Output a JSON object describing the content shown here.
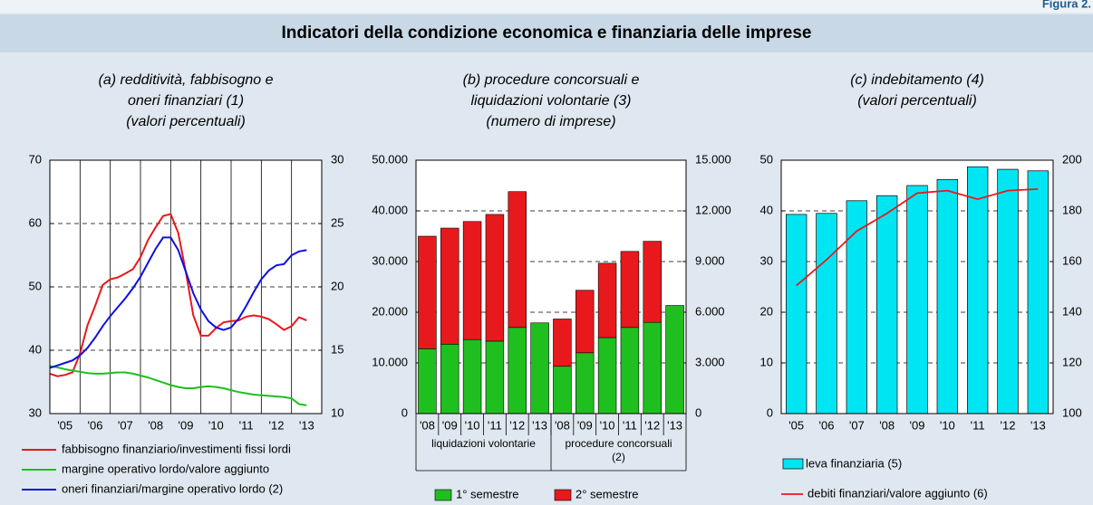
{
  "header": {
    "figure": "Figura 2.",
    "title": "Indicatori della condizione economica e finanziaria delle imprese"
  },
  "chart_data": [
    {
      "type": "line",
      "title": [
        "(a) redditività, fabbisogno e",
        "oneri finanziari (1)",
        "(valori percentuali)"
      ],
      "x": [
        2005,
        2005.25,
        2005.5,
        2005.75,
        2006,
        2006.25,
        2006.5,
        2006.75,
        2007,
        2007.25,
        2007.5,
        2007.75,
        2008,
        2008.25,
        2008.5,
        2008.75,
        2009,
        2009.25,
        2009.5,
        2009.75,
        2010,
        2010.25,
        2010.5,
        2010.75,
        2011,
        2011.25,
        2011.5,
        2011.75,
        2012,
        2012.25,
        2012.5,
        2012.75,
        2013,
        2013.25,
        2013.5
      ],
      "xlim": [
        2005,
        2014
      ],
      "xticks": [
        {
          "value": 2005.5,
          "label": "'05"
        },
        {
          "value": 2006.5,
          "label": "'06"
        },
        {
          "value": 2007.5,
          "label": "'07"
        },
        {
          "value": 2008.5,
          "label": "'08"
        },
        {
          "value": 2009.5,
          "label": "'09"
        },
        {
          "value": 2010.5,
          "label": "'10"
        },
        {
          "value": 2011.5,
          "label": "'11"
        },
        {
          "value": 2012.5,
          "label": "'12"
        },
        {
          "value": 2013.5,
          "label": "'13"
        }
      ],
      "xgrid": [
        2006,
        2007,
        2008,
        2009,
        2010,
        2011,
        2012,
        2013
      ],
      "ylim": [
        30,
        70
      ],
      "yticks": [
        30,
        40,
        50,
        60,
        70
      ],
      "y2lim": [
        10,
        30
      ],
      "y2ticks": [
        10,
        15,
        20,
        25,
        30
      ],
      "grid": true,
      "series": [
        {
          "name": "fabbisogno finanziario/investimenti fissi lordi",
          "color": "#e8191c",
          "axis": "y",
          "values": [
            36.3,
            35.9,
            36.1,
            36.5,
            39.5,
            44,
            47,
            50.3,
            51.2,
            51.5,
            52.1,
            52.8,
            54.7,
            57.4,
            59.4,
            61.2,
            61.5,
            58.5,
            52.4,
            45.5,
            42.3,
            42.3,
            43.5,
            44.4,
            44.6,
            44.7,
            45.3,
            45.5,
            45.3,
            44.9,
            44.1,
            43.2,
            43.8,
            45.2,
            44.7
          ]
        },
        {
          "name": "margine operativo lordo/valore aggiunto",
          "color": "#1fbf1f",
          "axis": "y",
          "values": [
            37.5,
            37.3,
            37.0,
            36.8,
            36.6,
            36.4,
            36.3,
            36.3,
            36.4,
            36.5,
            36.5,
            36.3,
            36.0,
            35.7,
            35.3,
            34.9,
            34.5,
            34.2,
            34.0,
            34.0,
            34.2,
            34.3,
            34.2,
            34.0,
            33.7,
            33.4,
            33.2,
            33.0,
            32.9,
            32.8,
            32.7,
            32.6,
            32.4,
            31.5,
            31.3
          ]
        },
        {
          "name": "oneri finanziari/margine operativo lordo (2)",
          "color": "#1010e0",
          "axis": "y2",
          "values": [
            13.6,
            13.8,
            14.0,
            14.2,
            14.6,
            15.2,
            16.0,
            16.9,
            17.7,
            18.4,
            19.1,
            19.9,
            20.8,
            21.9,
            23.0,
            23.9,
            23.9,
            22.9,
            21.2,
            19.5,
            18.2,
            17.3,
            16.8,
            16.6,
            16.8,
            17.5,
            18.5,
            19.6,
            20.6,
            21.3,
            21.7,
            21.8,
            22.5,
            22.8,
            22.9
          ]
        }
      ]
    },
    {
      "type": "stacked_bar",
      "title": [
        "(b) procedure concorsuali e",
        "liquidazioni volontarie (3)",
        "(numero di imprese)"
      ],
      "ylim": [
        0,
        50000
      ],
      "yticks": [
        0,
        {
          "value": 10000,
          "label": "10.000"
        },
        {
          "value": 20000,
          "label": "20.000"
        },
        {
          "value": 30000,
          "label": "30.000"
        },
        {
          "value": 40000,
          "label": "40.000"
        },
        {
          "value": 50000,
          "label": "50.000"
        }
      ],
      "y2lim": [
        0,
        15000
      ],
      "y2ticks": [
        0,
        {
          "value": 3000,
          "label": "3.000"
        },
        {
          "value": 6000,
          "label": "6.000"
        },
        {
          "value": 9000,
          "label": "9.000"
        },
        {
          "value": 12000,
          "label": "12.000"
        },
        {
          "value": 15000,
          "label": "15.000"
        }
      ],
      "grid": true,
      "series": [
        {
          "name": "1° semestre",
          "color": "#1fbf1f"
        },
        {
          "name": "2° semestre",
          "color": "#e8191c"
        }
      ],
      "groups": [
        {
          "label": "liquidazioni volontarie",
          "axis": "y",
          "categories": [
            "'08",
            "'09",
            "'10",
            "'11",
            "'12",
            "'13"
          ],
          "values": [
            [
              12800,
              13700,
              14600,
              14300,
              17000,
              17900
            ],
            [
              22200,
              22900,
              23300,
              25000,
              26800,
              null
            ]
          ]
        },
        {
          "label": "procedure concorsuali (2)",
          "axis": "y2",
          "categories": [
            "'08",
            "'09",
            "'10",
            "'11",
            "'12",
            "'13"
          ],
          "values": [
            [
              2800,
              3600,
              4500,
              5100,
              5400,
              6400
            ],
            [
              2800,
              3700,
              4400,
              4500,
              4800,
              null
            ]
          ]
        }
      ]
    },
    {
      "type": "bar_line",
      "title": [
        "(c) indebitamento (4)",
        "(valori percentuali)"
      ],
      "categories": [
        "'05",
        "'06",
        "'07",
        "'08",
        "'09",
        "'10",
        "'11",
        "'12",
        "'13"
      ],
      "ylim": [
        0,
        50
      ],
      "yticks": [
        0,
        10,
        20,
        30,
        40,
        50
      ],
      "y2lim": [
        100,
        200
      ],
      "y2ticks": [
        100,
        120,
        140,
        160,
        180,
        200
      ],
      "grid": true,
      "series": [
        {
          "name": "leva finanziaria (5)",
          "color": "#00e5f2",
          "type": "bar",
          "axis": "y",
          "values": [
            39.3,
            39.5,
            42,
            43,
            45,
            46.2,
            48.7,
            48.2,
            47.9
          ]
        },
        {
          "name": "debiti finanziari/valore aggiunto (6)",
          "color": "#e8191c",
          "type": "line",
          "axis": "y2",
          "values": [
            150.5,
            160.7,
            172,
            179,
            187,
            188,
            184.6,
            188,
            188.6
          ]
        }
      ]
    }
  ]
}
